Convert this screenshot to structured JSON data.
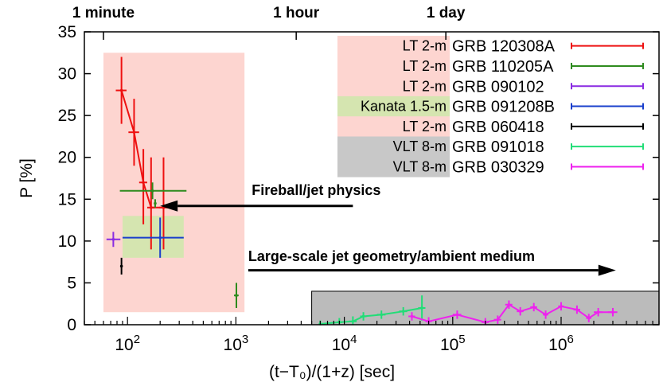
{
  "chart_data": {
    "type": "scatter",
    "x_scale": "log",
    "xlabel": "(t−T₀)/(1+z) [sec]",
    "ylabel": "P [%]",
    "xlim": [
      40,
      8000000
    ],
    "ylim": [
      0,
      35
    ],
    "y_ticks": [
      0,
      5,
      10,
      15,
      20,
      25,
      30,
      35
    ],
    "x_ticks": [
      {
        "value": 100,
        "base": "10",
        "exp": "2"
      },
      {
        "value": 1000,
        "base": "10",
        "exp": "3"
      },
      {
        "value": 10000,
        "base": "10",
        "exp": "4"
      },
      {
        "value": 100000,
        "base": "10",
        "exp": "5"
      },
      {
        "value": 1000000,
        "base": "10",
        "exp": "6"
      }
    ],
    "top_ticks": [
      {
        "value": 60,
        "label": "1 minute"
      },
      {
        "value": 3600,
        "label": "1 hour"
      },
      {
        "value": 86400,
        "label": "1 day"
      }
    ],
    "regions": [
      {
        "name": "early-pink-region",
        "x": [
          60,
          1200
        ],
        "y": [
          1.5,
          32.5
        ],
        "color": "#fdd5d0"
      },
      {
        "name": "kanata-green-region",
        "x": [
          90,
          330
        ],
        "y": [
          8,
          13
        ],
        "color": "#d5e5b0"
      },
      {
        "name": "late-gray-region",
        "x": [
          5000,
          8000000
        ],
        "y": [
          0,
          4
        ],
        "color": "#bbbbbb"
      }
    ],
    "legend": [
      {
        "telescope": "LT 2-m",
        "grb": "GRB 120308A",
        "color": "#ee1111",
        "bg": "#fdd5d0"
      },
      {
        "telescope": "LT 2-m",
        "grb": "GRB 110205A",
        "color": "#2e8b1e",
        "bg": "#fdd5d0"
      },
      {
        "telescope": "LT 2-m",
        "grb": "GRB 090102",
        "color": "#8a2be2",
        "bg": "#fdd5d0"
      },
      {
        "telescope": "Kanata 1.5-m",
        "grb": "GRB 091208B",
        "color": "#1a3fcc",
        "bg": "#d5e5b0"
      },
      {
        "telescope": "LT 2-m",
        "grb": "GRB 060418",
        "color": "#000000",
        "bg": "#fdd5d0"
      },
      {
        "telescope": "VLT 8-m",
        "grb": "GRB 091018",
        "color": "#22dd77",
        "bg": "#c8c8c8"
      },
      {
        "telescope": "VLT 8-m",
        "grb": "GRB 030329",
        "color": "#ee22ee",
        "bg": "#c8c8c8"
      }
    ],
    "series": [
      {
        "name": "GRB 120308A",
        "color": "#ee1111",
        "connect": true,
        "points": [
          {
            "x": 88,
            "y": 28,
            "xlo": 78,
            "xhi": 98,
            "ylo": 24,
            "yhi": 32
          },
          {
            "x": 115,
            "y": 23,
            "xlo": 102,
            "xhi": 128,
            "ylo": 19,
            "yhi": 27
          },
          {
            "x": 140,
            "y": 17,
            "xlo": 128,
            "xhi": 152,
            "ylo": 12,
            "yhi": 21
          },
          {
            "x": 165,
            "y": 14,
            "xlo": 152,
            "xhi": 178,
            "ylo": 9,
            "yhi": 20
          },
          {
            "x": 215,
            "y": 14,
            "xlo": 195,
            "xhi": 235,
            "ylo": 9,
            "yhi": 20
          }
        ]
      },
      {
        "name": "GRB 110205A",
        "color": "#2e8b1e",
        "connect": false,
        "points": [
          {
            "x": 170,
            "y": 16,
            "xlo": 85,
            "xhi": 350,
            "ylo": 15,
            "yhi": 17
          },
          {
            "x": 180,
            "y": 14.5,
            "xlo": 178,
            "xhi": 182,
            "ylo": 14,
            "yhi": 15
          },
          {
            "x": 1010,
            "y": 3.5,
            "xlo": 960,
            "xhi": 1060,
            "ylo": 2,
            "yhi": 5
          }
        ]
      },
      {
        "name": "GRB 090102",
        "color": "#8a2be2",
        "connect": false,
        "points": [
          {
            "x": 74,
            "y": 10.2,
            "xlo": 64,
            "xhi": 86,
            "ylo": 9.3,
            "yhi": 11.1
          }
        ]
      },
      {
        "name": "GRB 091208B",
        "color": "#1a3fcc",
        "connect": false,
        "points": [
          {
            "x": 200,
            "y": 10.4,
            "xlo": 90,
            "xhi": 330,
            "ylo": 8,
            "yhi": 12.8
          }
        ]
      },
      {
        "name": "GRB 060418",
        "color": "#000000",
        "connect": false,
        "points": [
          {
            "x": 88,
            "y": 7,
            "xlo": 86,
            "xhi": 90,
            "ylo": 6,
            "yhi": 8
          }
        ]
      },
      {
        "name": "GRB 091018",
        "color": "#22dd77",
        "connect": true,
        "points": [
          {
            "x": 6000,
            "y": 0.1,
            "xlo": 5800,
            "xhi": 6200,
            "ylo": 0,
            "yhi": 0.5
          },
          {
            "x": 9000,
            "y": 0.3,
            "xlo": 8500,
            "xhi": 9500,
            "ylo": 0,
            "yhi": 0.8
          },
          {
            "x": 12000,
            "y": 0.4,
            "xlo": 11000,
            "xhi": 13000,
            "ylo": 0,
            "yhi": 1
          },
          {
            "x": 15000,
            "y": 1.0,
            "xlo": 14000,
            "xhi": 16000,
            "ylo": 0.5,
            "yhi": 1.5
          },
          {
            "x": 22000,
            "y": 1.2,
            "xlo": 20000,
            "xhi": 24000,
            "ylo": 0.7,
            "yhi": 1.7
          },
          {
            "x": 35000,
            "y": 1.6,
            "xlo": 32000,
            "xhi": 38000,
            "ylo": 1.1,
            "yhi": 2.1
          },
          {
            "x": 52000,
            "y": 2.0,
            "xlo": 48000,
            "xhi": 56000,
            "ylo": 0.5,
            "yhi": 3.5
          }
        ]
      },
      {
        "name": "GRB 030329",
        "color": "#ee22ee",
        "connect": true,
        "points": [
          {
            "x": 42000,
            "y": 1.0,
            "xlo": 39000,
            "xhi": 45000,
            "ylo": 0.5,
            "yhi": 1.5
          },
          {
            "x": 60000,
            "y": 0.4,
            "xlo": 56000,
            "xhi": 64000,
            "ylo": 0,
            "yhi": 0.9
          },
          {
            "x": 110000,
            "y": 1.2,
            "xlo": 100000,
            "xhi": 120000,
            "ylo": 0.7,
            "yhi": 1.7
          },
          {
            "x": 200000,
            "y": 0.3,
            "xlo": 185000,
            "xhi": 215000,
            "ylo": 0,
            "yhi": 0.8
          },
          {
            "x": 260000,
            "y": 0.6,
            "xlo": 240000,
            "xhi": 280000,
            "ylo": 0.1,
            "yhi": 1.1
          },
          {
            "x": 330000,
            "y": 2.4,
            "xlo": 305000,
            "xhi": 355000,
            "ylo": 1.9,
            "yhi": 2.9
          },
          {
            "x": 420000,
            "y": 1.6,
            "xlo": 390000,
            "xhi": 450000,
            "ylo": 1.1,
            "yhi": 2.1
          },
          {
            "x": 560000,
            "y": 2.1,
            "xlo": 520000,
            "xhi": 600000,
            "ylo": 1.6,
            "yhi": 2.6
          },
          {
            "x": 720000,
            "y": 1.2,
            "xlo": 680000,
            "xhi": 760000,
            "ylo": 0.7,
            "yhi": 1.7
          },
          {
            "x": 1000000,
            "y": 2.2,
            "xlo": 940000,
            "xhi": 1060000,
            "ylo": 1.7,
            "yhi": 2.7
          },
          {
            "x": 1400000,
            "y": 1.8,
            "xlo": 1300000,
            "xhi": 1500000,
            "ylo": 1.3,
            "yhi": 2.3
          },
          {
            "x": 1800000,
            "y": 0.8,
            "xlo": 1700000,
            "xhi": 1900000,
            "ylo": 0.3,
            "yhi": 1.3
          },
          {
            "x": 2200000,
            "y": 1.5,
            "xlo": 2000000,
            "xhi": 2400000,
            "ylo": 1.0,
            "yhi": 2.0
          },
          {
            "x": 3000000,
            "y": 1.5,
            "xlo": 2700000,
            "xhi": 3300000,
            "ylo": 1.0,
            "yhi": 2.0
          }
        ]
      }
    ],
    "annotations": [
      {
        "name": "annotation-fireball",
        "text": "Fireball/jet physics",
        "text_x": 1400,
        "text_y": 15.5,
        "arrow_from": [
          12000,
          14.2
        ],
        "arrow_to": [
          200,
          14.2
        ]
      },
      {
        "name": "annotation-large-scale",
        "text": "Large-scale jet geometry/ambient medium",
        "text_x": 1300,
        "text_y": 7.6,
        "arrow_from": [
          1300,
          6.5
        ],
        "arrow_to": [
          3200000,
          6.5
        ]
      }
    ]
  }
}
